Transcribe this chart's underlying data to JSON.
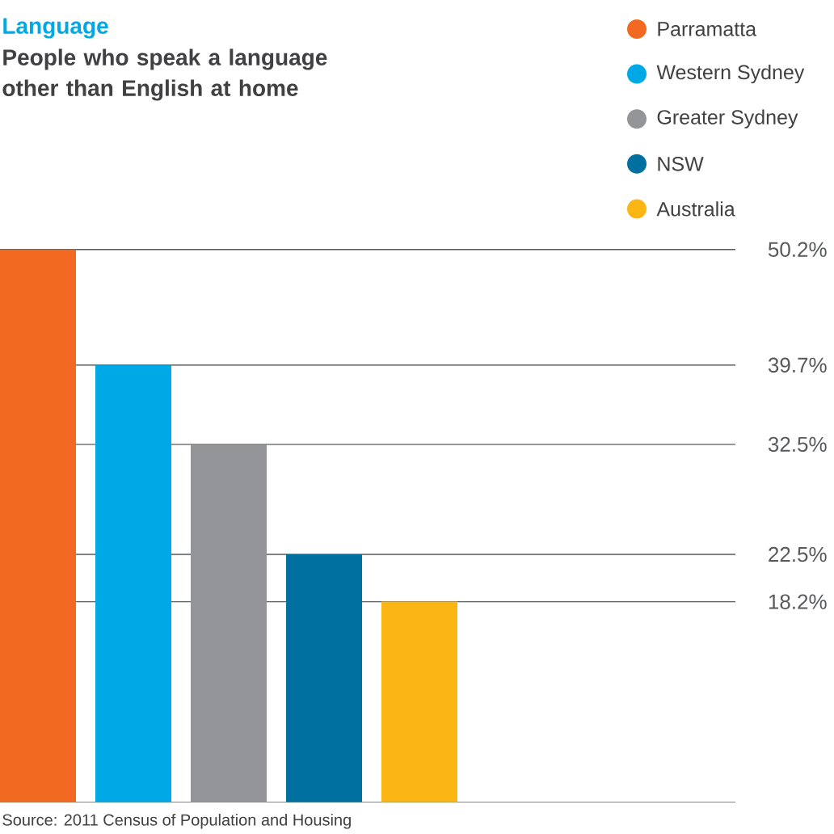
{
  "chart_data": {
    "type": "bar",
    "title": "Language",
    "subtitle": "People who speak a language other than English at home",
    "categories": [
      null
    ],
    "series": [
      {
        "name": "Parramatta",
        "color": "#f26a21",
        "values": [
          50.2
        ]
      },
      {
        "name": "Western Sydney",
        "color": "#00a9e6",
        "values": [
          39.7
        ]
      },
      {
        "name": "Greater Sydney",
        "color": "#939598",
        "values": [
          32.5
        ]
      },
      {
        "name": "NSW",
        "color": "#0070a0",
        "values": [
          22.5
        ]
      },
      {
        "name": "Australia",
        "color": "#fcb614",
        "values": [
          18.2
        ]
      }
    ],
    "ylim": [
      0,
      50.2
    ],
    "yticks": [
      {
        "value": 50.2,
        "label": "50.2%"
      },
      {
        "value": 39.7,
        "label": "39.7%"
      },
      {
        "value": 32.5,
        "label": "32.5%"
      },
      {
        "value": 22.5,
        "label": "22.5%"
      },
      {
        "value": 18.2,
        "label": "18.2%"
      }
    ],
    "grid": "y",
    "legend": "top right",
    "annotations": [
      "Source: 2011 Census of Population and Housing"
    ]
  }
}
